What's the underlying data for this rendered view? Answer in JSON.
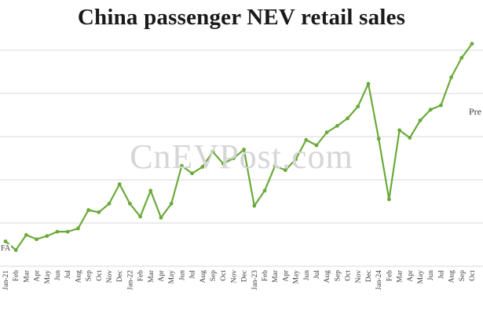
{
  "title": "China passenger NEV retail sales",
  "watermark": "CnEVPost.com",
  "source_fragment": "FA",
  "annotation": "Pre",
  "colors": {
    "line": "#6aaa3a",
    "grid": "#d9d9d9",
    "text": "#404040"
  },
  "chart_data": {
    "type": "line",
    "title": "China passenger NEV retail sales",
    "xlabel": "",
    "ylabel": "",
    "grid": true,
    "legend": "none",
    "categories": [
      "Jan-21",
      "Feb",
      "Mar",
      "Apr",
      "May",
      "Jun",
      "Jul",
      "Aug",
      "Sep",
      "Oct",
      "Nov",
      "Dec",
      "Jan-22",
      "Feb",
      "Mar",
      "Apr",
      "May",
      "Jun",
      "Jul",
      "Aug",
      "Sep",
      "Oct",
      "Nov",
      "Dec",
      "Jan-23",
      "Feb",
      "Mar",
      "Apr",
      "May",
      "Jun",
      "Jul",
      "Aug",
      "Sep",
      "Oct",
      "Nov",
      "Dec",
      "Jan-24",
      "Feb",
      "Mar",
      "Apr",
      "May",
      "Jun",
      "Jul",
      "Aug",
      "Sep",
      "Oct"
    ],
    "ylim": [
      0,
      1.0
    ],
    "series": [
      {
        "values": [
          0.115,
          0.075,
          0.145,
          0.125,
          0.14,
          0.16,
          0.16,
          0.175,
          0.26,
          0.25,
          0.29,
          0.38,
          0.29,
          0.23,
          0.35,
          0.225,
          0.29,
          0.465,
          0.43,
          0.46,
          0.53,
          0.475,
          0.5,
          0.54,
          0.28,
          0.35,
          0.465,
          0.445,
          0.495,
          0.585,
          0.56,
          0.62,
          0.65,
          0.685,
          0.74,
          0.845,
          0.59,
          0.31,
          0.63,
          0.595,
          0.675,
          0.725,
          0.745,
          0.875,
          0.965,
          1.03
        ]
      }
    ]
  }
}
